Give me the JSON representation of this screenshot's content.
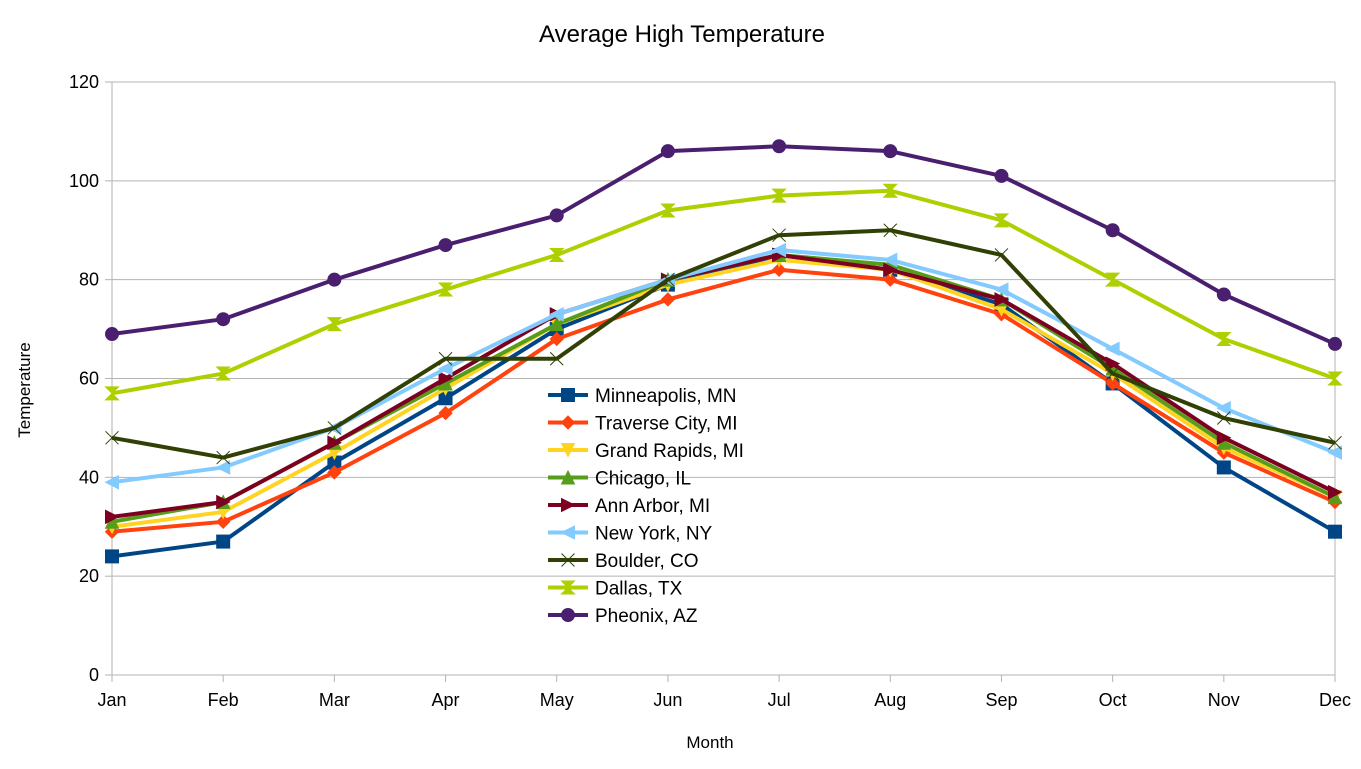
{
  "chart_data": {
    "type": "line",
    "title": "Average High Temperature",
    "xlabel": "Month",
    "ylabel": "Temperature",
    "categories": [
      "Jan",
      "Feb",
      "Mar",
      "Apr",
      "May",
      "Jun",
      "Jul",
      "Aug",
      "Sep",
      "Oct",
      "Nov",
      "Dec"
    ],
    "ylim": [
      0,
      120
    ],
    "yticks": [
      "0",
      "20",
      "40",
      "60",
      "80",
      "100",
      "120"
    ],
    "grid": true,
    "legend_position": "center",
    "series": [
      {
        "name": "Minneapolis, MN",
        "color": "#004586",
        "marker": "square",
        "values": [
          24,
          27,
          43,
          56,
          70,
          79,
          85,
          82,
          75,
          59,
          42,
          29
        ]
      },
      {
        "name": "Traverse City, MI",
        "color": "#ff420e",
        "marker": "diamond",
        "values": [
          29,
          31,
          41,
          53,
          68,
          76,
          82,
          80,
          73,
          59,
          45,
          35
        ]
      },
      {
        "name": "Grand Rapids, MI",
        "color": "#ffd320",
        "marker": "triangle-down",
        "values": [
          30,
          33,
          45,
          58,
          71,
          79,
          84,
          82,
          74,
          61,
          46,
          36
        ]
      },
      {
        "name": "Chicago, IL",
        "color": "#579d1c",
        "marker": "triangle-up",
        "values": [
          31,
          35,
          47,
          59,
          71,
          80,
          85,
          83,
          76,
          62,
          47,
          36
        ]
      },
      {
        "name": "Ann Arbor, MI",
        "color": "#7e0021",
        "marker": "triangle-right",
        "values": [
          32,
          35,
          47,
          60,
          73,
          80,
          85,
          82,
          76,
          63,
          48,
          37
        ]
      },
      {
        "name": "New York, NY",
        "color": "#83caff",
        "marker": "triangle-left",
        "values": [
          39,
          42,
          50,
          62,
          73,
          80,
          86,
          84,
          78,
          66,
          54,
          45
        ]
      },
      {
        "name": "Boulder, CO",
        "color": "#314004",
        "marker": "bowtie-h",
        "values": [
          48,
          44,
          50,
          64,
          64,
          80,
          89,
          90,
          85,
          61,
          52,
          47
        ]
      },
      {
        "name": "Dallas, TX",
        "color": "#aecf00",
        "marker": "bowtie-v",
        "values": [
          57,
          61,
          71,
          78,
          85,
          94,
          97,
          98,
          92,
          80,
          68,
          60
        ]
      },
      {
        "name": "Pheonix, AZ",
        "color": "#4b1f6f",
        "marker": "circle",
        "values": [
          69,
          72,
          80,
          87,
          93,
          106,
          107,
          106,
          101,
          90,
          77,
          67
        ]
      }
    ]
  }
}
